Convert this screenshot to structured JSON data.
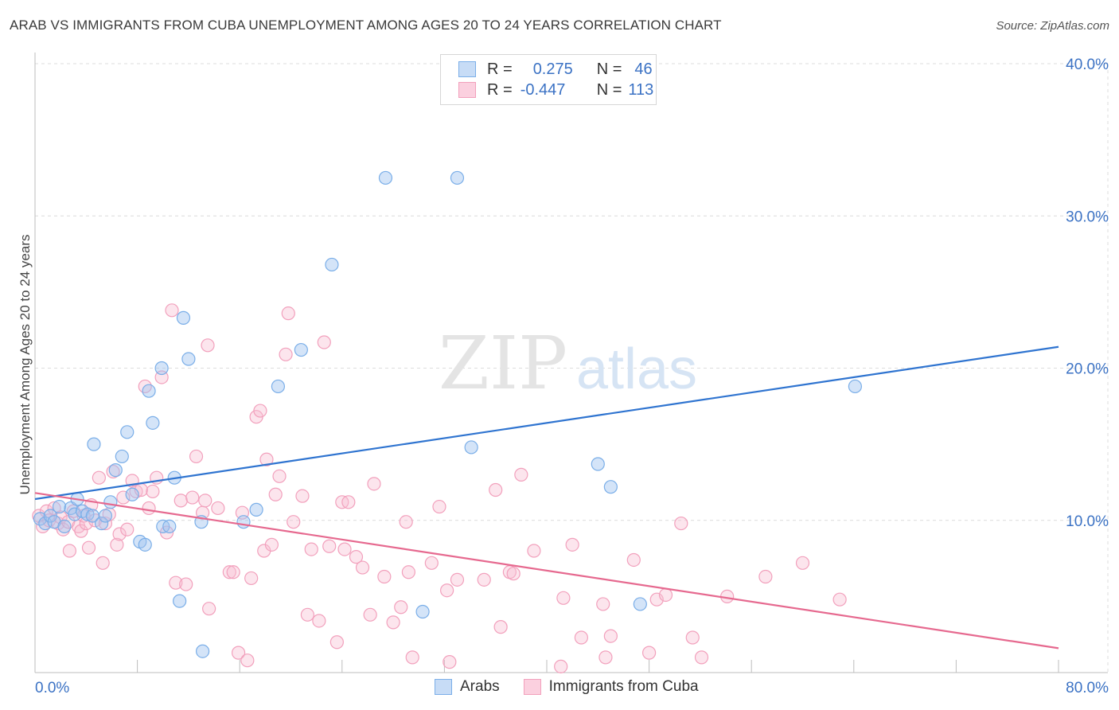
{
  "title": "ARAB VS IMMIGRANTS FROM CUBA UNEMPLOYMENT AMONG AGES 20 TO 24 YEARS CORRELATION CHART",
  "source": "Source: ZipAtlas.com",
  "watermark": {
    "zip": "ZIP",
    "atlas": "atlas"
  },
  "colors": {
    "blue": "#7aaee8",
    "blue_line": "#2f74d0",
    "pink": "#f2a0bc",
    "pink_line": "#e6698f",
    "tick_text": "#3b72c4",
    "grid": "#dcdcdc"
  },
  "legend": {
    "rows": [
      {
        "r_label": "R =",
        "r_value": "0.275",
        "n_label": "N =",
        "n_value": "46"
      },
      {
        "r_label": "R =",
        "r_value": "-0.447",
        "n_label": "N =",
        "n_value": "113"
      }
    ]
  },
  "bottom_legend": [
    "Arabs",
    "Immigrants from Cuba"
  ],
  "chart_data": {
    "type": "scatter",
    "title": "ARAB VS IMMIGRANTS FROM CUBA UNEMPLOYMENT AMONG AGES 20 TO 24 YEARS CORRELATION CHART",
    "xlabel": "",
    "ylabel": "Unemployment Among Ages 20 to 24 years",
    "xlim": [
      0,
      80
    ],
    "ylim": [
      0,
      40
    ],
    "x_tick_labels": [
      "0.0%",
      "80.0%"
    ],
    "y_ticks": [
      10,
      20,
      30,
      40
    ],
    "y_tick_labels": [
      "10.0%",
      "20.0%",
      "30.0%",
      "40.0%"
    ],
    "grid": true,
    "series": [
      {
        "name": "Arabs",
        "color": "#7aaee8",
        "trend": {
          "x": [
            0,
            80
          ],
          "y": [
            11.4,
            21.4
          ]
        },
        "points": [
          [
            0.4,
            10.1
          ],
          [
            0.8,
            9.8
          ],
          [
            1.2,
            10.3
          ],
          [
            1.5,
            9.9
          ],
          [
            1.9,
            10.9
          ],
          [
            2.3,
            9.6
          ],
          [
            2.8,
            10.8
          ],
          [
            3.1,
            10.4
          ],
          [
            3.3,
            11.4
          ],
          [
            3.7,
            10.6
          ],
          [
            4.1,
            10.4
          ],
          [
            4.5,
            10.3
          ],
          [
            4.6,
            15.0
          ],
          [
            5.2,
            9.8
          ],
          [
            5.5,
            10.3
          ],
          [
            5.9,
            11.2
          ],
          [
            6.3,
            13.3
          ],
          [
            6.8,
            14.2
          ],
          [
            7.2,
            15.8
          ],
          [
            7.6,
            11.7
          ],
          [
            8.2,
            8.6
          ],
          [
            8.6,
            8.4
          ],
          [
            8.9,
            18.5
          ],
          [
            9.2,
            16.4
          ],
          [
            9.9,
            20.0
          ],
          [
            10.0,
            9.6
          ],
          [
            10.5,
            9.6
          ],
          [
            10.9,
            12.8
          ],
          [
            11.3,
            4.7
          ],
          [
            11.6,
            23.3
          ],
          [
            12.0,
            20.6
          ],
          [
            13.0,
            9.9
          ],
          [
            13.1,
            1.4
          ],
          [
            16.3,
            9.9
          ],
          [
            17.3,
            10.7
          ],
          [
            19.0,
            18.8
          ],
          [
            20.8,
            21.2
          ],
          [
            23.2,
            26.8
          ],
          [
            27.4,
            32.5
          ],
          [
            30.3,
            4.0
          ],
          [
            33.0,
            32.5
          ],
          [
            34.1,
            14.8
          ],
          [
            44.0,
            13.7
          ],
          [
            45.0,
            12.2
          ],
          [
            47.3,
            4.5
          ],
          [
            64.1,
            18.8
          ]
        ]
      },
      {
        "name": "Immigrants from Cuba",
        "color": "#f2a0bc",
        "trend": {
          "x": [
            0,
            80
          ],
          "y": [
            11.8,
            1.6
          ]
        },
        "points": [
          [
            0.3,
            10.3
          ],
          [
            0.6,
            9.6
          ],
          [
            0.9,
            10.6
          ],
          [
            1.1,
            10.0
          ],
          [
            1.5,
            10.8
          ],
          [
            1.8,
            9.8
          ],
          [
            2.0,
            10.2
          ],
          [
            2.2,
            9.4
          ],
          [
            2.6,
            9.9
          ],
          [
            2.7,
            8.0
          ],
          [
            3.0,
            10.6
          ],
          [
            3.4,
            9.6
          ],
          [
            3.6,
            9.3
          ],
          [
            3.8,
            10.3
          ],
          [
            4.0,
            9.8
          ],
          [
            4.2,
            8.2
          ],
          [
            4.4,
            11.0
          ],
          [
            4.7,
            10.0
          ],
          [
            5.0,
            12.8
          ],
          [
            5.3,
            7.2
          ],
          [
            5.5,
            9.8
          ],
          [
            5.8,
            10.4
          ],
          [
            6.1,
            13.2
          ],
          [
            6.4,
            8.4
          ],
          [
            6.6,
            9.1
          ],
          [
            6.9,
            11.5
          ],
          [
            7.2,
            9.4
          ],
          [
            7.6,
            12.6
          ],
          [
            7.9,
            11.9
          ],
          [
            8.3,
            12.0
          ],
          [
            8.6,
            18.8
          ],
          [
            8.9,
            10.8
          ],
          [
            9.2,
            11.9
          ],
          [
            9.5,
            12.8
          ],
          [
            9.9,
            19.4
          ],
          [
            10.3,
            9.2
          ],
          [
            10.7,
            23.8
          ],
          [
            11.0,
            5.9
          ],
          [
            11.4,
            11.3
          ],
          [
            11.8,
            5.8
          ],
          [
            12.3,
            11.5
          ],
          [
            12.6,
            14.2
          ],
          [
            13.1,
            10.5
          ],
          [
            13.3,
            11.3
          ],
          [
            13.5,
            21.5
          ],
          [
            13.6,
            4.2
          ],
          [
            14.3,
            10.8
          ],
          [
            15.2,
            6.6
          ],
          [
            15.5,
            6.6
          ],
          [
            15.9,
            1.3
          ],
          [
            16.2,
            10.5
          ],
          [
            16.6,
            0.8
          ],
          [
            16.9,
            6.2
          ],
          [
            17.3,
            16.8
          ],
          [
            17.6,
            17.2
          ],
          [
            17.9,
            8.0
          ],
          [
            18.1,
            14.0
          ],
          [
            18.5,
            8.4
          ],
          [
            18.8,
            11.7
          ],
          [
            19.1,
            12.9
          ],
          [
            19.6,
            20.9
          ],
          [
            19.8,
            23.6
          ],
          [
            20.2,
            9.9
          ],
          [
            20.9,
            11.6
          ],
          [
            21.3,
            3.8
          ],
          [
            21.6,
            8.1
          ],
          [
            22.2,
            3.4
          ],
          [
            22.6,
            21.7
          ],
          [
            23.0,
            8.3
          ],
          [
            23.6,
            2.0
          ],
          [
            24.0,
            11.2
          ],
          [
            24.2,
            8.1
          ],
          [
            24.5,
            11.2
          ],
          [
            25.1,
            7.6
          ],
          [
            25.6,
            6.9
          ],
          [
            26.2,
            3.8
          ],
          [
            26.5,
            12.4
          ],
          [
            27.3,
            6.3
          ],
          [
            28.0,
            3.3
          ],
          [
            28.6,
            4.3
          ],
          [
            29.0,
            9.9
          ],
          [
            29.2,
            6.6
          ],
          [
            29.5,
            1.0
          ],
          [
            31.0,
            7.2
          ],
          [
            31.6,
            10.9
          ],
          [
            32.2,
            5.4
          ],
          [
            32.4,
            0.7
          ],
          [
            33.0,
            6.1
          ],
          [
            35.1,
            6.1
          ],
          [
            36.0,
            12.0
          ],
          [
            36.4,
            3.0
          ],
          [
            37.1,
            6.6
          ],
          [
            37.4,
            6.5
          ],
          [
            38.0,
            13.0
          ],
          [
            39.0,
            8.0
          ],
          [
            41.1,
            0.4
          ],
          [
            41.3,
            4.9
          ],
          [
            42.0,
            8.4
          ],
          [
            42.7,
            2.3
          ],
          [
            44.4,
            4.5
          ],
          [
            45.0,
            2.4
          ],
          [
            46.8,
            7.4
          ],
          [
            48.6,
            4.8
          ],
          [
            49.3,
            5.1
          ],
          [
            50.5,
            9.8
          ],
          [
            51.4,
            2.3
          ],
          [
            52.1,
            1.0
          ],
          [
            54.1,
            5.0
          ],
          [
            57.1,
            6.3
          ],
          [
            60.0,
            7.2
          ],
          [
            62.9,
            4.8
          ],
          [
            48.0,
            1.3
          ],
          [
            44.6,
            1.0
          ]
        ]
      }
    ]
  }
}
